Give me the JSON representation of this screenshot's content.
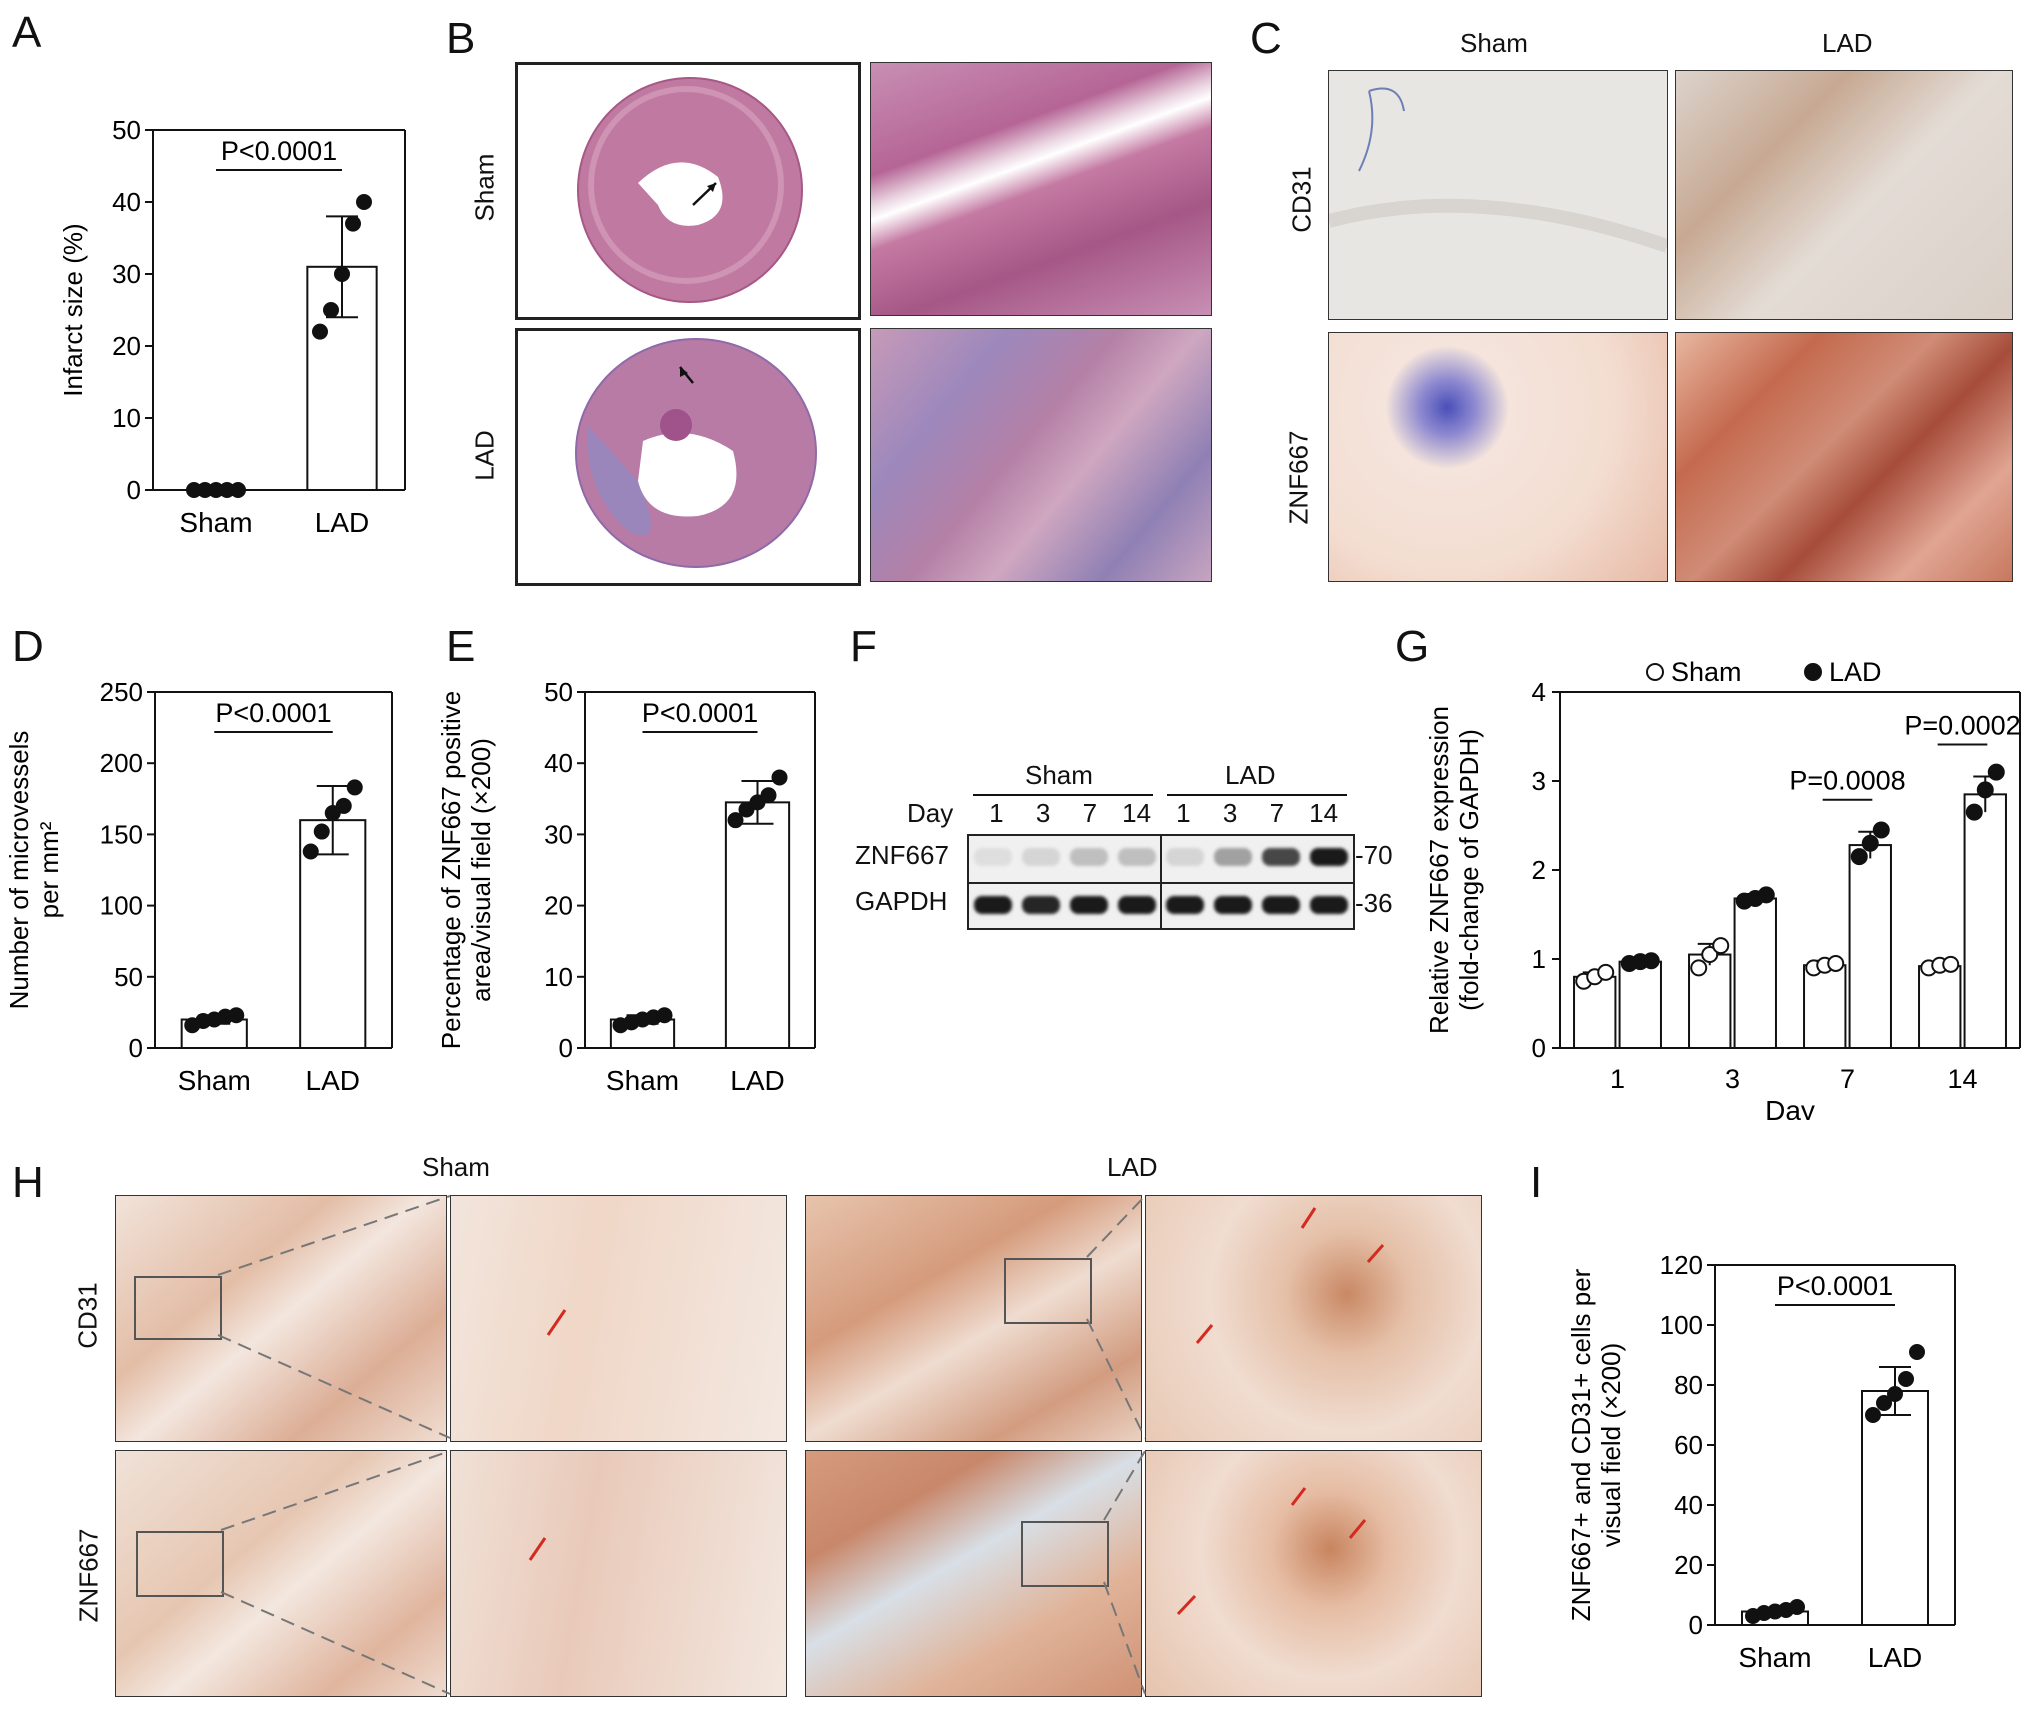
{
  "panels": {
    "A": "A",
    "B": "B",
    "C": "C",
    "D": "D",
    "E": "E",
    "F": "F",
    "G": "G",
    "H": "H",
    "I": "I"
  },
  "colors": {
    "he_pink": "#c5709a",
    "he_purple": "#8e6fae",
    "ihc_bg": "#f3ebe6",
    "ihc_brown": "#b5552b",
    "ihc_blue": "#3d55b8",
    "gray_bg": "#e9e7e4",
    "arrow_red": "#d42a1f"
  },
  "panel_b": {
    "row_labels": [
      "Sham",
      "LAD"
    ]
  },
  "panel_c": {
    "col_labels": [
      "Sham",
      "LAD"
    ],
    "row_labels": [
      "CD31",
      "ZNF667"
    ]
  },
  "panel_f": {
    "group_labels": [
      "Sham",
      "LAD"
    ],
    "day_label": "Day",
    "days": [
      "1",
      "3",
      "7",
      "14",
      "1",
      "3",
      "7",
      "14"
    ],
    "bands": [
      {
        "name": "ZNF667",
        "marker": "-70",
        "intensity": [
          0.08,
          0.12,
          0.22,
          0.22,
          0.12,
          0.35,
          0.75,
          0.95
        ]
      },
      {
        "name": "GAPDH",
        "marker": "-36",
        "intensity": [
          0.95,
          0.9,
          0.95,
          0.95,
          0.95,
          0.95,
          0.95,
          0.95
        ]
      }
    ]
  },
  "panel_h": {
    "col_labels": [
      "Sham",
      "LAD"
    ],
    "row_labels": [
      "CD31",
      "ZNF667"
    ]
  },
  "chart_data": [
    {
      "id": "A",
      "type": "bar",
      "categories": [
        "Sham",
        "LAD"
      ],
      "values": [
        0,
        31
      ],
      "errors": [
        0,
        7
      ],
      "points": [
        [
          0,
          0,
          0,
          0,
          0
        ],
        [
          22,
          25,
          30,
          37,
          40
        ]
      ],
      "ylabel": "Infarct size (%)",
      "ylim": [
        0,
        50
      ],
      "yticks": [
        0,
        10,
        20,
        30,
        40,
        50
      ],
      "p_values": [
        {
          "label": "P<0.0001"
        }
      ]
    },
    {
      "id": "D",
      "type": "bar",
      "categories": [
        "Sham",
        "LAD"
      ],
      "values": [
        20,
        160
      ],
      "errors": [
        3,
        24
      ],
      "points": [
        [
          16,
          19,
          20,
          22,
          23
        ],
        [
          138,
          152,
          165,
          170,
          183
        ]
      ],
      "ylabel_lines": [
        "Number of microvessels",
        "per mm²"
      ],
      "ylim": [
        0,
        250
      ],
      "yticks": [
        0,
        50,
        100,
        150,
        200,
        250
      ],
      "p_values": [
        {
          "label": "P<0.0001"
        }
      ]
    },
    {
      "id": "E",
      "type": "bar",
      "categories": [
        "Sham",
        "LAD"
      ],
      "values": [
        4,
        34.5
      ],
      "errors": [
        0.6,
        3
      ],
      "points": [
        [
          3.2,
          3.6,
          4,
          4.3,
          4.6
        ],
        [
          32,
          33.5,
          34.5,
          35.5,
          38
        ]
      ],
      "ylabel_lines": [
        "Percentage of ZNF667 positive",
        "area/visual field (×200)"
      ],
      "ylim": [
        0,
        50
      ],
      "yticks": [
        0,
        10,
        20,
        30,
        40,
        50
      ],
      "p_values": [
        {
          "label": "P<0.0001"
        }
      ]
    },
    {
      "id": "G",
      "type": "bar",
      "categories": [
        "1",
        "3",
        "7",
        "14"
      ],
      "xlabel": "Day",
      "ylabel_lines": [
        "Relative ZNF667 expression",
        "(fold-change of GAPDH)"
      ],
      "ylim": [
        0,
        4
      ],
      "yticks": [
        0,
        1,
        2,
        3,
        4
      ],
      "legend": [
        "Sham",
        "LAD"
      ],
      "series": [
        {
          "name": "Sham",
          "values": [
            0.8,
            1.05,
            0.93,
            0.92
          ],
          "errors": [
            0.05,
            0.12,
            0.05,
            0.05
          ],
          "points": [
            [
              0.75,
              0.8,
              0.85
            ],
            [
              0.9,
              1.05,
              1.15
            ],
            [
              0.9,
              0.93,
              0.95
            ],
            [
              0.9,
              0.93,
              0.94
            ]
          ]
        },
        {
          "name": "LAD",
          "values": [
            0.97,
            1.68,
            2.28,
            2.85
          ],
          "errors": [
            0.02,
            0.05,
            0.15,
            0.2
          ],
          "points": [
            [
              0.95,
              0.97,
              0.98
            ],
            [
              1.65,
              1.68,
              1.72
            ],
            [
              2.15,
              2.3,
              2.45
            ],
            [
              2.65,
              2.9,
              3.1
            ]
          ]
        }
      ],
      "p_values": [
        {
          "label": "P=0.0008",
          "day": "7"
        },
        {
          "label": "P=0.0002",
          "day": "14"
        }
      ]
    },
    {
      "id": "I",
      "type": "bar",
      "categories": [
        "Sham",
        "LAD"
      ],
      "values": [
        4.5,
        78
      ],
      "errors": [
        1,
        8
      ],
      "points": [
        [
          3,
          4,
          4.5,
          5,
          6
        ],
        [
          70,
          74,
          77,
          82,
          91
        ]
      ],
      "ylabel_lines": [
        "ZNF667+ and CD31+ cells per",
        "visual field (×200)"
      ],
      "ylim": [
        0,
        120
      ],
      "yticks": [
        0,
        20,
        40,
        60,
        80,
        100,
        120
      ],
      "p_values": [
        {
          "label": "P<0.0001"
        }
      ]
    }
  ]
}
